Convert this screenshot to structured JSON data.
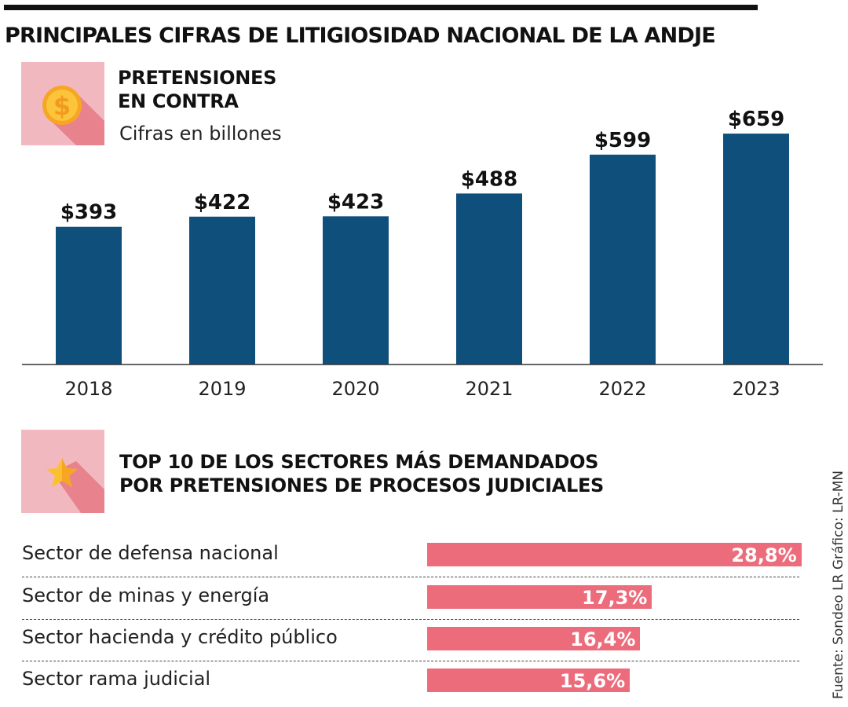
{
  "title": "PRINCIPALES CIFRAS DE LITIGIOSIDAD NACIONAL DE LA ANDJE",
  "section1": {
    "heading_line1": "PRETENSIONES",
    "heading_line2": "EN CONTRA",
    "note": "Cifras en billones",
    "icon": "dollar-coin-icon"
  },
  "section2": {
    "heading_line1": "TOP 10 DE LOS SECTORES MÁS DEMANDADOS",
    "heading_line2": "POR PRETENSIONES DE PROCESOS JUDICIALES",
    "icon": "star-icon"
  },
  "source": "Fuente: Sondeo LR   Gráfico: LR-MN",
  "colors": {
    "bar": "#0f4f7c",
    "hbar": "#ec6c7c",
    "icon_bg": "#f2b8bf"
  },
  "chart_data": [
    {
      "type": "bar",
      "title": "PRETENSIONES EN CONTRA",
      "categories": [
        "2018",
        "2019",
        "2020",
        "2021",
        "2022",
        "2023"
      ],
      "values": [
        393,
        422,
        423,
        488,
        599,
        659
      ],
      "labels": [
        "$393",
        "$422",
        "$423",
        "$488",
        "$599",
        "$659"
      ],
      "ylabel": "Cifras en billones",
      "ylim": [
        0,
        1040
      ],
      "grid": false
    },
    {
      "type": "bar",
      "orientation": "horizontal",
      "title": "TOP 10 DE LOS SECTORES MÁS DEMANDADOS POR PRETENSIONES DE PROCESOS JUDICIALES",
      "categories": [
        "Sector de defensa nacional",
        "Sector de minas y energía",
        "Sector hacienda y crédito público",
        "Sector rama judicial"
      ],
      "values": [
        28.8,
        17.3,
        16.4,
        15.6
      ],
      "labels": [
        "28,8%",
        "17,3%",
        "16,4%",
        "15,6%"
      ],
      "xlim": [
        0,
        28.8
      ]
    }
  ]
}
